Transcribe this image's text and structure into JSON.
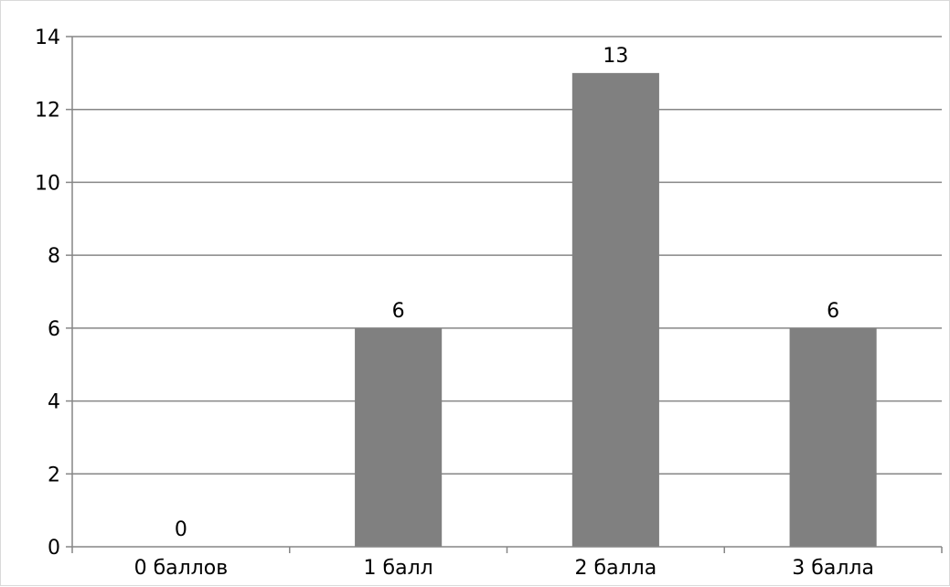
{
  "chart_data": {
    "type": "bar",
    "categories": [
      "0 баллов",
      "1 балл",
      "2 балла",
      "3 балла"
    ],
    "values": [
      0,
      6,
      13,
      6
    ],
    "data_labels": [
      "0",
      "6",
      "13",
      "6"
    ],
    "y_ticks": [
      "0",
      "2",
      "4",
      "6",
      "8",
      "10",
      "12",
      "14"
    ],
    "ylim": [
      0,
      14
    ],
    "y_step": 2,
    "grid": true,
    "legend": "none",
    "title": "",
    "xlabel": "",
    "ylabel": "",
    "bar_color": "#808080",
    "grid_color": "#868686",
    "axis_color": "#868686"
  }
}
